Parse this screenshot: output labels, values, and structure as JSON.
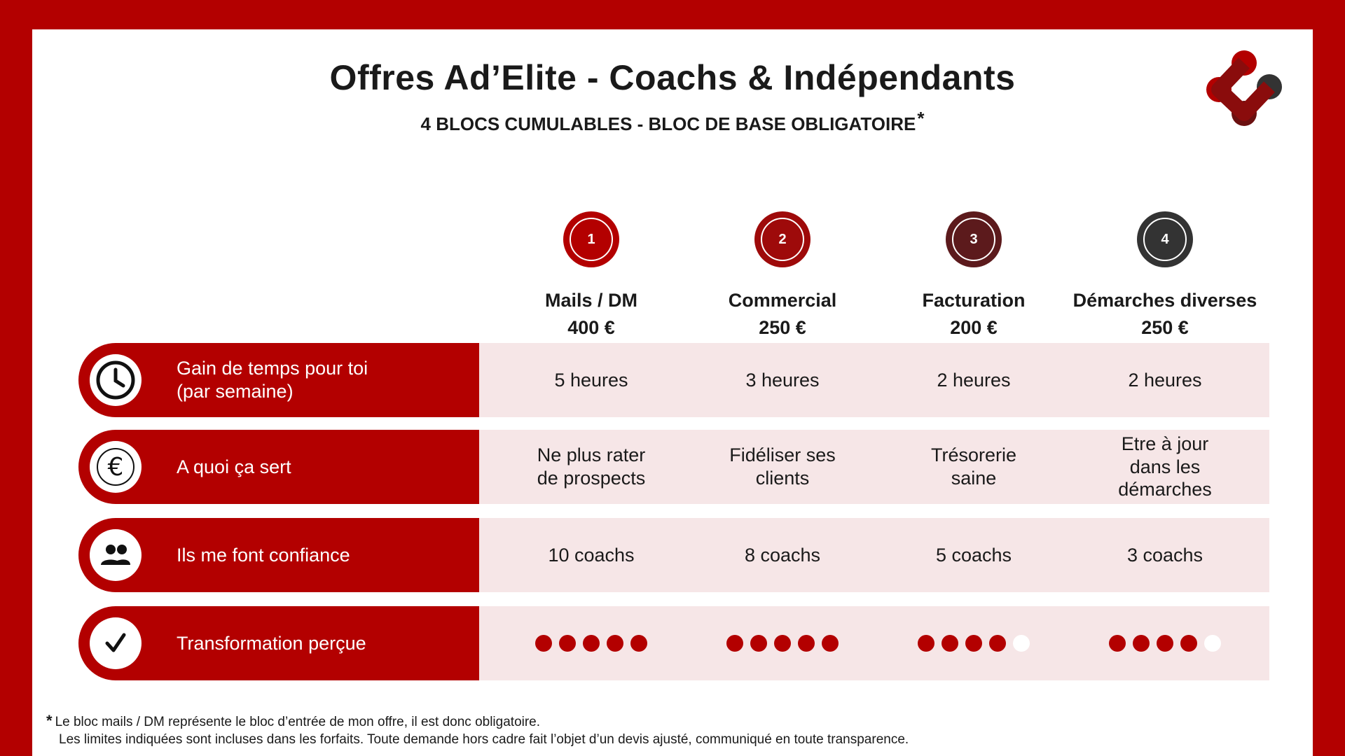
{
  "header": {
    "title": "Offres Ad’Elite - Coachs & Indépendants",
    "subtitle": "4 BLOCS CUMULABLES - BLOC DE BASE OBLIGATOIRE",
    "subtitle_mark": "*"
  },
  "logo": {
    "icon": "adelite-molecule-logo",
    "colors": [
      "#b30000",
      "#6b1010",
      "#333333"
    ]
  },
  "colors": {
    "brand_red": "#b30000",
    "cell_bg": "#f6e6e7",
    "dark_red": "#5c1a1c",
    "dark_grey": "#333333"
  },
  "columns": [
    {
      "number": "1",
      "name": "Mails / DM",
      "price": "400 €",
      "badge_color": "#b30000"
    },
    {
      "number": "2",
      "name": "Commercial",
      "price": "250 €",
      "badge_color": "#9e0a0a"
    },
    {
      "number": "3",
      "name": "Facturation",
      "price": "200 €",
      "badge_color": "#5c1a1c"
    },
    {
      "number": "4",
      "name": "Démarches diverses",
      "price": "250 €",
      "badge_color": "#333333"
    }
  ],
  "rows": [
    {
      "icon": "clock-icon",
      "label": "Gain de temps pour toi\n(par semaine)",
      "cells": [
        "5 heures",
        "3 heures",
        "2 heures",
        "2 heures"
      ]
    },
    {
      "icon": "euro-icon",
      "label": "A quoi ça sert",
      "cells": [
        "Ne plus rater\nde prospects",
        "Fidéliser ses\nclients",
        "Trésorerie\nsaine",
        "Etre à jour\ndans les\ndémarches"
      ]
    },
    {
      "icon": "people-icon",
      "label": "Ils me font confiance",
      "cells": [
        "10 coachs",
        "8 coachs",
        "5 coachs",
        "3 coachs"
      ]
    },
    {
      "icon": "checkmark-icon",
      "label": "Transformation perçue",
      "ratings": [
        5,
        5,
        4,
        4
      ],
      "rating_max": 5
    }
  ],
  "footnote": {
    "mark": "*",
    "line1": "Le bloc mails / DM représente le bloc d’entrée de mon offre, il est donc obligatoire.",
    "line2": "Les limites indiquées sont incluses dans les forfaits. Toute demande hors cadre fait l’objet d’un devis ajusté, communiqué en toute transparence."
  }
}
